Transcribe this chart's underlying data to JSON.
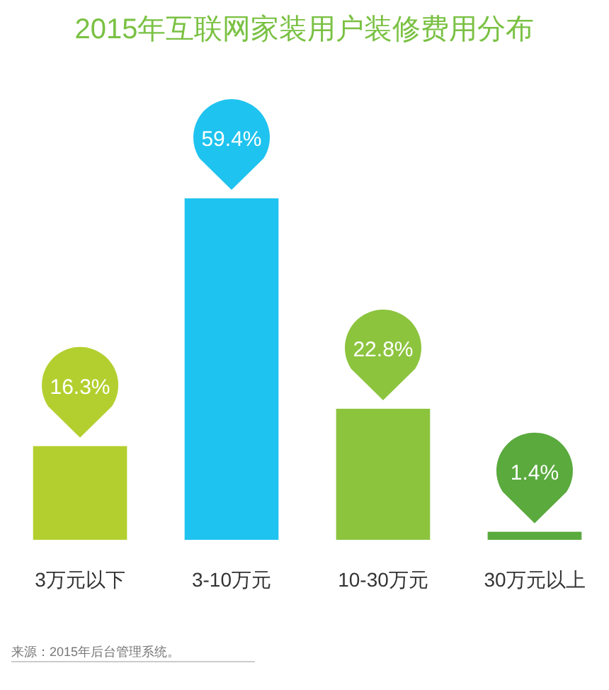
{
  "chart_data": {
    "type": "bar",
    "title": "2015年互联网家装用户装修费用分布",
    "categories": [
      "3万元以下",
      "3-10万元",
      "10-30万元",
      "30万元以上"
    ],
    "values": [
      16.3,
      59.4,
      22.8,
      1.4
    ],
    "colors": [
      "#b3cf2f",
      "#1fc3ef",
      "#8cc43e",
      "#5aaa3e"
    ],
    "value_labels": [
      "16.3%",
      "59.4%",
      "22.8%",
      "1.4%"
    ],
    "annotations": [
      "来源：2015年后台管理系统。"
    ]
  }
}
